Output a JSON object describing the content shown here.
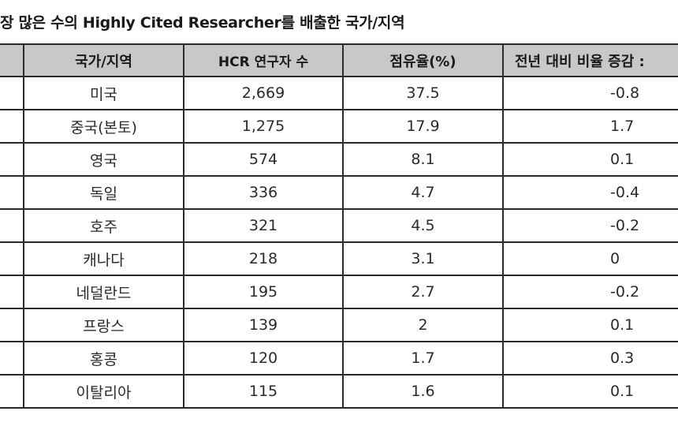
{
  "title": "장 많은 수의 Highly Cited Researcher를 배출한 국가/지역",
  "table": {
    "headers": [
      "",
      "국가/지역",
      "HCR 연구자 수",
      "점유율(%)",
      "전년 대비 비율 증감 :"
    ],
    "rows": [
      {
        "rank": "",
        "country": "미국",
        "hcr_count": "2,669",
        "share": "37.5",
        "yoy_change": "-0.8"
      },
      {
        "rank": "",
        "country": "중국(본토)",
        "hcr_count": "1,275",
        "share": "17.9",
        "yoy_change": "1.7"
      },
      {
        "rank": "",
        "country": "영국",
        "hcr_count": "574",
        "share": "8.1",
        "yoy_change": "0.1"
      },
      {
        "rank": "",
        "country": "독일",
        "hcr_count": "336",
        "share": "4.7",
        "yoy_change": "-0.4"
      },
      {
        "rank": "",
        "country": "호주",
        "hcr_count": "321",
        "share": "4.5",
        "yoy_change": "-0.2"
      },
      {
        "rank": "",
        "country": "캐나다",
        "hcr_count": "218",
        "share": "3.1",
        "yoy_change": "0"
      },
      {
        "rank": "",
        "country": "네덜란드",
        "hcr_count": "195",
        "share": "2.7",
        "yoy_change": "-0.2"
      },
      {
        "rank": "",
        "country": "프랑스",
        "hcr_count": "139",
        "share": "2",
        "yoy_change": "0.1"
      },
      {
        "rank": "",
        "country": "홍콩",
        "hcr_count": "120",
        "share": "1.7",
        "yoy_change": "0.3"
      },
      {
        "rank": "",
        "country": "이탈리아",
        "hcr_count": "115",
        "share": "1.6",
        "yoy_change": "0.1"
      }
    ]
  },
  "colors": {
    "header_bg": "#c8c8c8",
    "border": "#2b2b2b",
    "text": "#222222",
    "background": "#ffffff"
  }
}
